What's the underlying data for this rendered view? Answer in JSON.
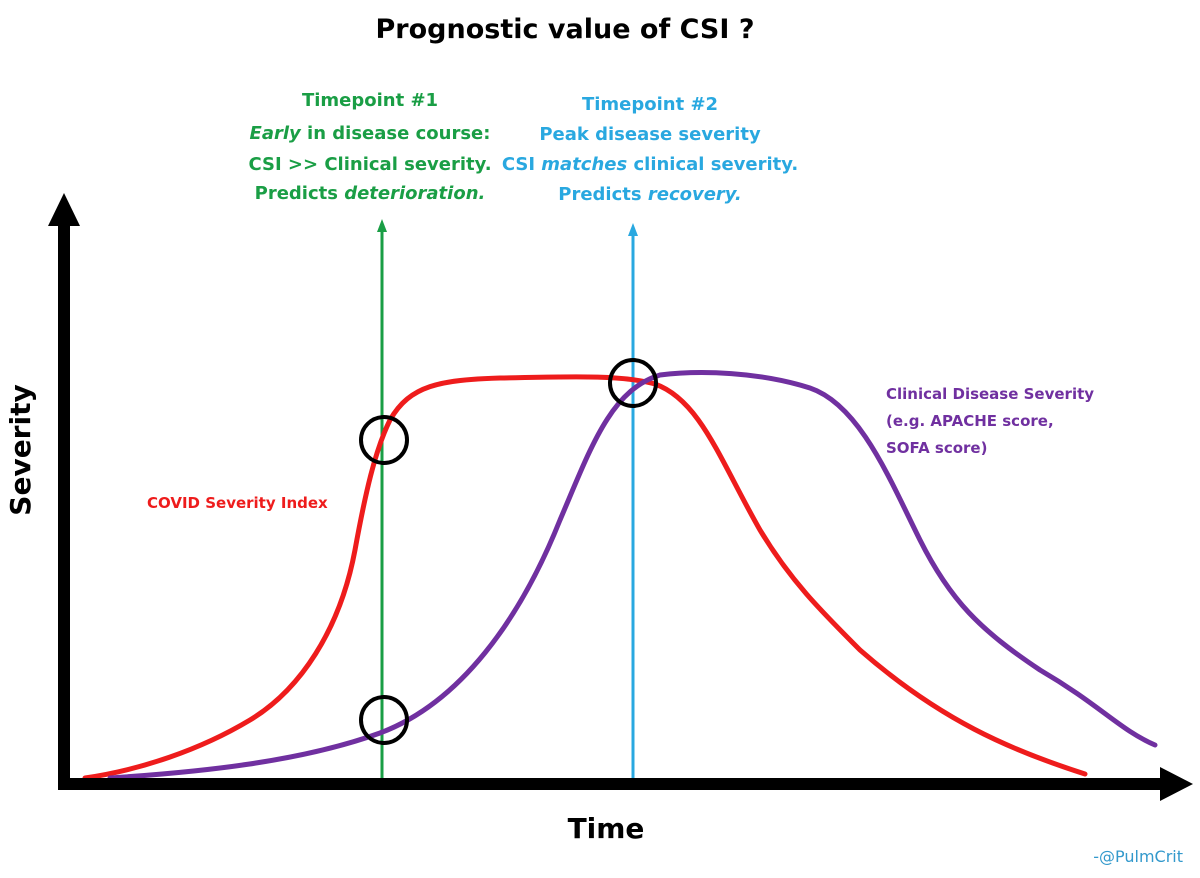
{
  "title": "Prognostic value of CSI ?",
  "axes": {
    "x_label": "Time",
    "y_label": "Severity"
  },
  "timepoint1": {
    "line1": "Timepoint #1",
    "line2_em": "Early",
    "line2_rest": " in disease course:",
    "line3": "CSI >> Clinical severity.",
    "line4_pre": "Predicts ",
    "line4_em": "deterioration.",
    "color": "#1a9e45"
  },
  "timepoint2": {
    "line1": "Timepoint #2",
    "line2": "Peak disease severity",
    "line3_pre": "CSI ",
    "line3_em": "matches",
    "line3_rest": " clinical severity.",
    "line4_pre": "Predicts ",
    "line4_em": "recovery.",
    "color": "#29a8e0"
  },
  "curves": {
    "csi": {
      "label": "COVID Severity Index",
      "color": "#ee1c1c"
    },
    "clinical": {
      "label_line1": "Clinical Disease Severity",
      "label_line2": "(e.g. APACHE score,",
      "label_line3": "SOFA score)",
      "color": "#7030a0"
    }
  },
  "credit": "-@PulmCrit",
  "colors": {
    "axis": "#000000",
    "circle": "#000000",
    "credit": "#3399cc"
  }
}
